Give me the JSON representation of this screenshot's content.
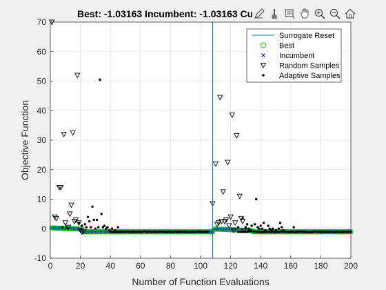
{
  "chart_data": {
    "type": "scatter",
    "title": "Best: -1.03163 Incumbent: -1.03163 Cu",
    "xlabel": "Number of Function Evaluations",
    "ylabel": "Objective Function",
    "xlim": [
      0,
      200
    ],
    "ylim": [
      -10,
      70
    ],
    "xticks": [
      0,
      20,
      40,
      60,
      80,
      100,
      120,
      140,
      160,
      180,
      200
    ],
    "yticks": [
      -10,
      0,
      10,
      20,
      30,
      40,
      50,
      60,
      70
    ],
    "grid": true,
    "legend_position": "top-right",
    "surrogate_reset_x": 108,
    "series": [
      {
        "name": "Surrogate Reset",
        "color": "#0072BD"
      },
      {
        "name": "Best",
        "color": "#00C000"
      },
      {
        "name": "Incumbent",
        "color": "#0000FF"
      },
      {
        "name": "Random Samples",
        "color": "#000000",
        "points": [
          [
            1,
            70
          ],
          [
            3,
            4
          ],
          [
            4,
            3.5
          ],
          [
            6,
            14
          ],
          [
            7,
            14
          ],
          [
            9,
            32
          ],
          [
            10,
            2
          ],
          [
            12,
            0.5
          ],
          [
            13,
            5
          ],
          [
            14,
            8
          ],
          [
            15,
            32.5
          ],
          [
            16,
            2.5
          ],
          [
            17,
            3
          ],
          [
            18,
            52
          ],
          [
            19,
            2
          ],
          [
            20,
            -0.5
          ],
          [
            21,
            -1
          ],
          [
            22,
            -1
          ],
          [
            108,
            8.5
          ],
          [
            110,
            22
          ],
          [
            111,
            1.5
          ],
          [
            112,
            2
          ],
          [
            113,
            44.5
          ],
          [
            114,
            2.5
          ],
          [
            115,
            12.5
          ],
          [
            116,
            2.5
          ],
          [
            117,
            3
          ],
          [
            118,
            22.5
          ],
          [
            119,
            1
          ],
          [
            120,
            4
          ],
          [
            121,
            38.5
          ],
          [
            122,
            -0.5
          ],
          [
            123,
            2
          ],
          [
            124,
            31.5
          ],
          [
            126,
            11
          ],
          [
            127,
            3.5
          ],
          [
            128,
            2.5
          ],
          [
            129,
            -0.5
          ]
        ]
      },
      {
        "name": "Adaptive Samples",
        "color": "#000000",
        "points": [
          [
            8,
            0.5
          ],
          [
            11,
            0.5
          ],
          [
            19,
            2
          ],
          [
            21,
            1
          ],
          [
            23,
            1.5
          ],
          [
            24,
            0.5
          ],
          [
            25,
            4
          ],
          [
            26,
            2.5
          ],
          [
            27,
            0.5
          ],
          [
            28,
            7.5
          ],
          [
            29,
            3
          ],
          [
            30,
            0
          ],
          [
            31,
            3
          ],
          [
            32,
            0.5
          ],
          [
            33,
            50.5
          ],
          [
            34,
            5
          ],
          [
            35,
            0.5
          ],
          [
            36,
            1
          ],
          [
            37,
            0
          ],
          [
            38,
            0.5
          ],
          [
            39,
            -0.5
          ],
          [
            41,
            0
          ],
          [
            43,
            -0.5
          ],
          [
            45,
            0.5
          ],
          [
            47,
            -1
          ],
          [
            50,
            -1
          ],
          [
            55,
            -1
          ],
          [
            60,
            -1
          ],
          [
            65,
            -1
          ],
          [
            70,
            -1
          ],
          [
            75,
            -1
          ],
          [
            80,
            -1
          ],
          [
            85,
            -1
          ],
          [
            90,
            -1
          ],
          [
            95,
            -1
          ],
          [
            100,
            -1
          ],
          [
            105,
            -1
          ],
          [
            125,
            0.5
          ],
          [
            128,
            3.5
          ],
          [
            130,
            0.5
          ],
          [
            131,
            1.5
          ],
          [
            132,
            0
          ],
          [
            133,
            -0.5
          ],
          [
            134,
            1
          ],
          [
            136,
            1.5
          ],
          [
            137,
            10
          ],
          [
            138,
            0.5
          ],
          [
            139,
            0
          ],
          [
            140,
            1
          ],
          [
            141,
            0
          ],
          [
            142,
            2
          ],
          [
            143,
            -0.5
          ],
          [
            144,
            -1
          ],
          [
            145,
            1
          ],
          [
            146,
            0
          ],
          [
            147,
            -0.5
          ],
          [
            148,
            0
          ],
          [
            150,
            -0.5
          ],
          [
            152,
            0
          ],
          [
            153,
            2
          ],
          [
            154,
            0.5
          ],
          [
            155,
            -0.5
          ],
          [
            157,
            -1
          ],
          [
            160,
            -1
          ],
          [
            162,
            0.5
          ],
          [
            164,
            -1
          ],
          [
            167,
            -1
          ],
          [
            170,
            -1
          ],
          [
            175,
            -1
          ],
          [
            180,
            -1
          ],
          [
            185,
            -1
          ],
          [
            190,
            -1
          ],
          [
            195,
            -1
          ],
          [
            200,
            -1
          ]
        ]
      }
    ]
  },
  "toolbar": {
    "icons": [
      "edit-icon",
      "paint-brush-icon",
      "data-tips-icon",
      "pan-icon",
      "zoom-in-icon",
      "zoom-out-icon",
      "home-icon"
    ]
  }
}
